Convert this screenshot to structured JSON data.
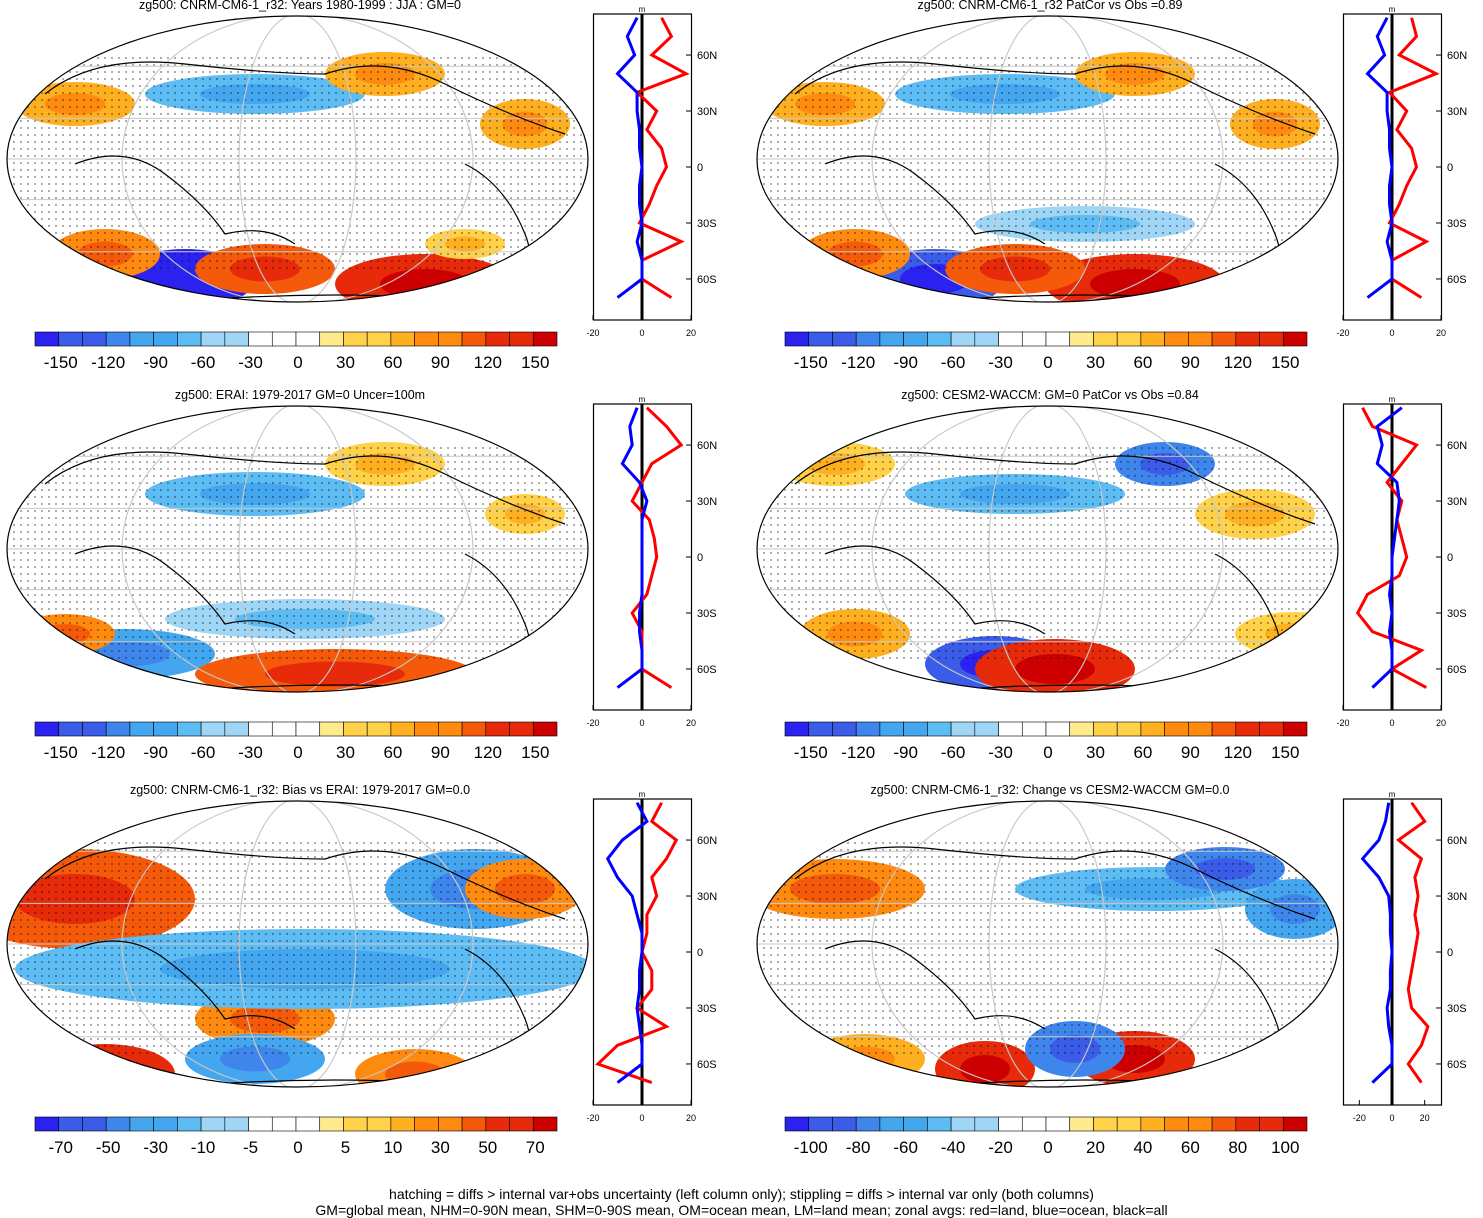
{
  "panels": [
    {
      "title": "zg500: CNRM-CM6-1_r32: Years 1980-1999 : JJA : GM=0",
      "colorbar_labels": [
        "-150",
        "-120",
        "-90",
        "-60",
        "-30",
        "0",
        "30",
        "60",
        "90",
        "120",
        "150"
      ],
      "profile_xticks": [
        "-20",
        "0",
        "20"
      ],
      "profile_unit": "m",
      "lat_labels": [
        "60N",
        "30N",
        "0",
        "30S",
        "60S"
      ]
    },
    {
      "title": "zg500: CNRM-CM6-1_r32 PatCor vs Obs =0.89",
      "colorbar_labels": [
        "-150",
        "-120",
        "-90",
        "-60",
        "-30",
        "0",
        "30",
        "60",
        "90",
        "120",
        "150"
      ],
      "profile_xticks": [
        "-20",
        "0",
        "20"
      ],
      "profile_unit": "m",
      "lat_labels": [
        "60N",
        "30N",
        "0",
        "30S",
        "60S"
      ]
    },
    {
      "title": "zg500: ERAI: 1979-2017 GM=0 Uncer=100m",
      "colorbar_labels": [
        "-150",
        "-120",
        "-90",
        "-60",
        "-30",
        "0",
        "30",
        "60",
        "90",
        "120",
        "150"
      ],
      "profile_xticks": [
        "-20",
        "0",
        "20"
      ],
      "profile_unit": "m",
      "lat_labels": [
        "60N",
        "30N",
        "0",
        "30S",
        "60S"
      ]
    },
    {
      "title": "zg500: CESM2-WACCM: GM=0 PatCor vs Obs =0.84",
      "colorbar_labels": [
        "-150",
        "-120",
        "-90",
        "-60",
        "-30",
        "0",
        "30",
        "60",
        "90",
        "120",
        "150"
      ],
      "profile_xticks": [
        "-20",
        "0",
        "20"
      ],
      "profile_unit": "m",
      "lat_labels": [
        "60N",
        "30N",
        "0",
        "30S",
        "60S"
      ]
    },
    {
      "title": "zg500: CNRM-CM6-1_r32: Bias vs ERAI: 1979-2017 GM=0.0",
      "colorbar_labels": [
        "-70",
        "-50",
        "-30",
        "-10",
        "-5",
        "0",
        "5",
        "10",
        "30",
        "50",
        "70"
      ],
      "profile_xticks": [
        "-20",
        "0",
        "20"
      ],
      "profile_unit": "m",
      "lat_labels": [
        "60N",
        "30N",
        "0",
        "30S",
        "60S"
      ]
    },
    {
      "title": "zg500: CNRM-CM6-1_r32: Change vs CESM2-WACCM GM=0.0",
      "colorbar_labels": [
        "-100",
        "-80",
        "-60",
        "-40",
        "-20",
        "0",
        "20",
        "40",
        "60",
        "80",
        "100"
      ],
      "profile_xticks": [
        "-20",
        "0",
        "20"
      ],
      "profile_unit": "m",
      "lat_labels": [
        "60N",
        "30N",
        "0",
        "30S",
        "60S"
      ]
    }
  ],
  "footer": {
    "line1": "hatching = diffs > internal var+obs uncertainty (left column only); stippling = diffs > internal var only (both columns)",
    "line2": "GM=global mean, NHM=0-90N mean, SHM=0-90S mean, OM=ocean mean, LM=land mean; zonal avgs: red=land, blue=ocean, black=all"
  },
  "colors": {
    "palette": [
      "#2b22f0",
      "#3a5ce8",
      "#3f86ec",
      "#45a6f0",
      "#5dbcf3",
      "#9fd6f5",
      "#ffffff",
      "#ffffff",
      "#ffeb8c",
      "#ffd24a",
      "#ffb021",
      "#ff8a10",
      "#f55a0a",
      "#e62a0a",
      "#cc0000"
    ],
    "land_profile": "#ff0000",
    "ocean_profile": "#0000ff",
    "all_profile": "#000000"
  },
  "chart_data": [
    {
      "type": "heatmap",
      "title": "zg500: CNRM-CM6-1_r32: Years 1980-1999 : JJA : GM=0",
      "levels": [
        -150,
        -120,
        -90,
        -60,
        -30,
        0,
        30,
        60,
        90,
        120,
        150
      ],
      "yticks": [
        "60N",
        "30N",
        "0",
        "30S",
        "60S"
      ],
      "profile_xlim": [
        -20,
        20
      ],
      "profile_series": [
        {
          "name": "land",
          "lat": [
            80,
            70,
            60,
            50,
            40,
            30,
            20,
            10,
            0,
            -10,
            -20,
            -30,
            -40,
            -50,
            -60,
            -70
          ],
          "values": [
            8,
            12,
            4,
            18,
            -2,
            6,
            2,
            8,
            10,
            6,
            3,
            -1,
            16,
            0,
            0,
            12
          ]
        },
        {
          "name": "ocean",
          "lat": [
            80,
            70,
            60,
            50,
            40,
            30,
            20,
            10,
            0,
            -10,
            -20,
            -30,
            -40,
            -50,
            -60,
            -70
          ],
          "values": [
            -2,
            -6,
            -3,
            -10,
            -2,
            -2,
            -1,
            -1,
            0,
            -1,
            -1,
            0,
            -2,
            0,
            0,
            -10
          ]
        }
      ]
    },
    {
      "type": "heatmap",
      "title": "zg500: CNRM-CM6-1_r32 PatCor vs Obs =0.89",
      "levels": [
        -150,
        -120,
        -90,
        -60,
        -30,
        0,
        30,
        60,
        90,
        120,
        150
      ],
      "yticks": [
        "60N",
        "30N",
        "0",
        "30S",
        "60S"
      ],
      "profile_xlim": [
        -20,
        20
      ],
      "profile_series": [
        {
          "name": "land",
          "lat": [
            80,
            70,
            60,
            50,
            40,
            30,
            20,
            10,
            0,
            -10,
            -20,
            -30,
            -40,
            -50,
            -60,
            -70
          ],
          "values": [
            8,
            10,
            3,
            18,
            -1,
            6,
            2,
            8,
            10,
            6,
            3,
            -1,
            14,
            0,
            0,
            12
          ]
        },
        {
          "name": "ocean",
          "lat": [
            80,
            70,
            60,
            50,
            40,
            30,
            20,
            10,
            0,
            -10,
            -20,
            -30,
            -40,
            -50,
            -60,
            -70
          ],
          "values": [
            -2,
            -6,
            -3,
            -10,
            -2,
            -2,
            -1,
            -1,
            0,
            -1,
            -1,
            0,
            -2,
            0,
            0,
            -10
          ]
        }
      ]
    },
    {
      "type": "heatmap",
      "title": "zg500: ERAI: 1979-2017 GM=0 Uncer=100m",
      "levels": [
        -150,
        -120,
        -90,
        -60,
        -30,
        0,
        30,
        60,
        90,
        120,
        150
      ],
      "yticks": [
        "60N",
        "30N",
        "0",
        "30S",
        "60S"
      ],
      "profile_xlim": [
        -20,
        20
      ],
      "profile_series": [
        {
          "name": "land",
          "lat": [
            80,
            70,
            60,
            50,
            40,
            30,
            20,
            10,
            0,
            -10,
            -20,
            -30,
            -40,
            -50,
            -60,
            -70
          ],
          "values": [
            2,
            10,
            16,
            4,
            0,
            -4,
            3,
            5,
            6,
            4,
            2,
            -4,
            0,
            0,
            0,
            12
          ]
        },
        {
          "name": "ocean",
          "lat": [
            80,
            70,
            60,
            50,
            40,
            30,
            20,
            10,
            0,
            -10,
            -20,
            -30,
            -40,
            -50,
            -60,
            -70
          ],
          "values": [
            -2,
            -5,
            -4,
            -8,
            -1,
            2,
            0,
            0,
            0,
            0,
            0,
            -1,
            -1,
            0,
            0,
            -10
          ]
        }
      ]
    },
    {
      "type": "heatmap",
      "title": "zg500: CESM2-WACCM: GM=0 PatCor vs Obs =0.84",
      "levels": [
        -150,
        -120,
        -90,
        -60,
        -30,
        0,
        30,
        60,
        90,
        120,
        150
      ],
      "yticks": [
        "60N",
        "30N",
        "0",
        "30S",
        "60S"
      ],
      "profile_xlim": [
        -20,
        20
      ],
      "profile_series": [
        {
          "name": "land",
          "lat": [
            80,
            70,
            60,
            50,
            40,
            30,
            20,
            10,
            0,
            -10,
            -20,
            -30,
            -40,
            -50,
            -60,
            -70
          ],
          "values": [
            -12,
            -8,
            10,
            4,
            -2,
            4,
            2,
            4,
            6,
            3,
            -10,
            -14,
            -8,
            12,
            0,
            14
          ]
        },
        {
          "name": "ocean",
          "lat": [
            80,
            70,
            60,
            50,
            40,
            30,
            20,
            10,
            0,
            -10,
            -20,
            -30,
            -40,
            -50,
            -60,
            -70
          ],
          "values": [
            4,
            -6,
            -4,
            -6,
            2,
            3,
            2,
            1,
            0,
            0,
            -1,
            0,
            -1,
            0,
            0,
            -8
          ]
        }
      ]
    },
    {
      "type": "heatmap",
      "title": "zg500: CNRM-CM6-1_r32: Bias vs ERAI: 1979-2017 GM=0.0",
      "levels": [
        -70,
        -50,
        -30,
        -10,
        -5,
        0,
        5,
        10,
        30,
        50,
        70
      ],
      "yticks": [
        "60N",
        "30N",
        "0",
        "30S",
        "60S"
      ],
      "profile_xlim": [
        -20,
        20
      ],
      "profile_series": [
        {
          "name": "land",
          "lat": [
            80,
            70,
            60,
            50,
            40,
            30,
            20,
            10,
            0,
            -10,
            -20,
            -30,
            -40,
            -50,
            -60,
            -70
          ],
          "values": [
            8,
            4,
            14,
            10,
            4,
            6,
            2,
            2,
            0,
            4,
            4,
            -2,
            10,
            -10,
            -18,
            4
          ]
        },
        {
          "name": "ocean",
          "lat": [
            80,
            70,
            60,
            50,
            40,
            30,
            20,
            10,
            0,
            -10,
            -20,
            -30,
            -40,
            -50,
            -60,
            -70
          ],
          "values": [
            -2,
            2,
            -8,
            -14,
            -10,
            -4,
            -2,
            0,
            0,
            -1,
            -1,
            -2,
            -1,
            0,
            0,
            -10
          ]
        }
      ]
    },
    {
      "type": "heatmap",
      "title": "zg500: CNRM-CM6-1_r32: Change vs CESM2-WACCM GM=0.0",
      "levels": [
        -100,
        -80,
        -60,
        -40,
        -20,
        0,
        20,
        40,
        60,
        80,
        100
      ],
      "yticks": [
        "60N",
        "30N",
        "0",
        "30S",
        "60S"
      ],
      "profile_xlim": [
        -30,
        30
      ],
      "profile_series": [
        {
          "name": "land",
          "lat": [
            80,
            70,
            60,
            50,
            40,
            30,
            20,
            10,
            0,
            -10,
            -20,
            -30,
            -40,
            -50,
            -60,
            -70
          ],
          "values": [
            12,
            20,
            4,
            18,
            14,
            16,
            14,
            16,
            14,
            12,
            10,
            12,
            22,
            18,
            10,
            18
          ]
        },
        {
          "name": "ocean",
          "lat": [
            80,
            70,
            60,
            50,
            40,
            30,
            20,
            10,
            0,
            -10,
            -20,
            -30,
            -40,
            -50,
            -60,
            -70
          ],
          "values": [
            -2,
            -4,
            -8,
            -18,
            -8,
            -2,
            -1,
            -1,
            0,
            -1,
            -1,
            -3,
            -2,
            0,
            0,
            -12
          ]
        }
      ]
    }
  ]
}
